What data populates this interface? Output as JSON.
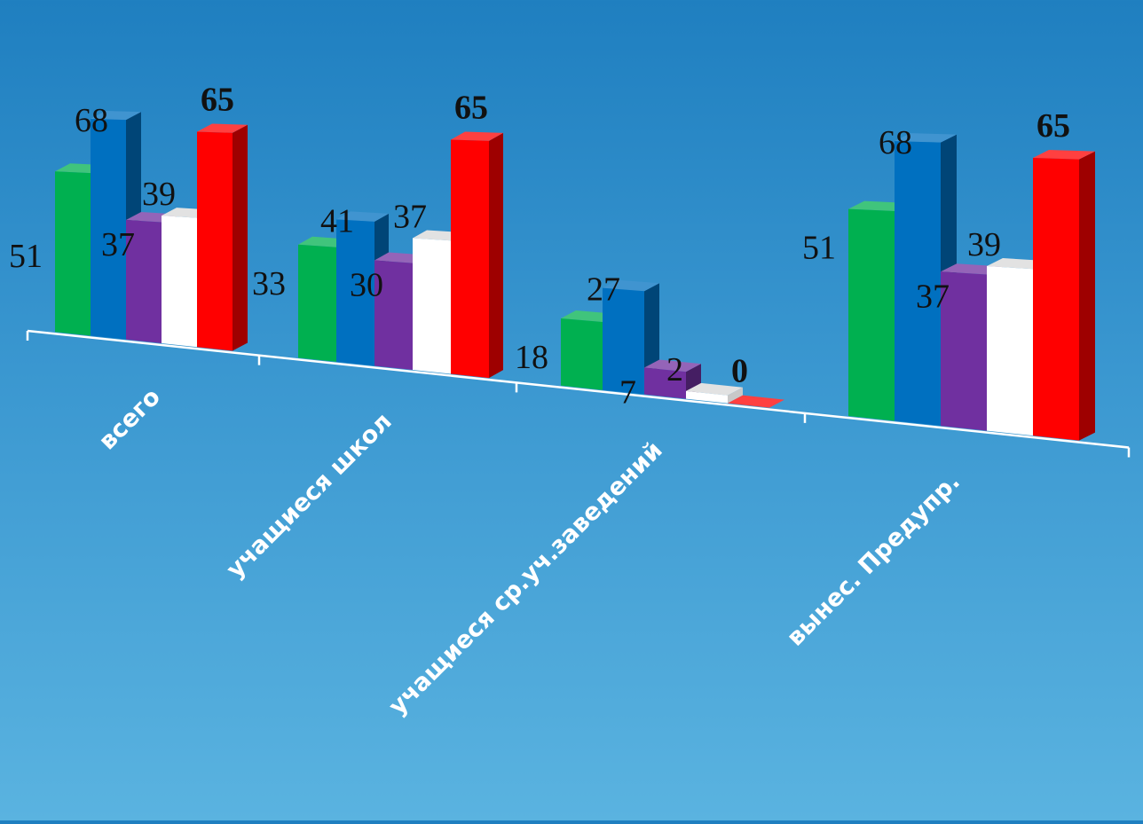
{
  "chart_data": {
    "type": "bar",
    "categories": [
      "всего",
      "учащиеся школ",
      "учащиеся ср.уч.заведений",
      "вынес. Предупр."
    ],
    "series": [
      {
        "values": [
          51,
          33,
          18,
          51
        ],
        "color": "#00b050"
      },
      {
        "values": [
          68,
          41,
          27,
          68
        ],
        "color": "#0070c0"
      },
      {
        "values": [
          37,
          30,
          7,
          37
        ],
        "color": "#7030a0"
      },
      {
        "values": [
          39,
          37,
          2,
          39
        ],
        "color": "#ffffff"
      },
      {
        "values": [
          65,
          65,
          0,
          65
        ],
        "color": "#ff0000"
      }
    ],
    "title": "",
    "xlabel": "",
    "ylabel": "",
    "three_d": true,
    "grid": false,
    "legend": "none",
    "bold_series_labels": [
      4
    ]
  }
}
